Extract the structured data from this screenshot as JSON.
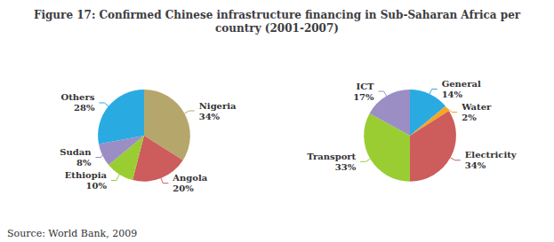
{
  "chart_data": [
    {
      "type": "pie",
      "title": "Figure 17: Confirmed Chinese infrastructure financing in Sub-Saharan Africa per\ncountry (2001-2007)",
      "annotations": [
        "Source: World Bank, 2009"
      ],
      "categories": [
        "Nigeria",
        "Angola",
        "Ethiopia",
        "Sudan",
        "Others"
      ],
      "values": [
        34,
        20,
        10,
        8,
        28
      ],
      "value_labels": [
        "34%",
        "20%",
        "10%",
        "8%",
        "28%"
      ],
      "colors": [
        "#b5a76b",
        "#cd5c5c",
        "#9acd32",
        "#9b8ec4",
        "#29abe2"
      ],
      "data_labels": true
    },
    {
      "type": "pie",
      "categories": [
        "General",
        "Water",
        "Electricity",
        "Transport",
        "ICT"
      ],
      "values": [
        14,
        2,
        34,
        33,
        17
      ],
      "value_labels": [
        "14%",
        "2%",
        "34%",
        "33%",
        "17%"
      ],
      "colors": [
        "#29abe2",
        "#f5a623",
        "#cd5c5c",
        "#9acd32",
        "#9b8ec4"
      ],
      "data_labels": true
    }
  ]
}
